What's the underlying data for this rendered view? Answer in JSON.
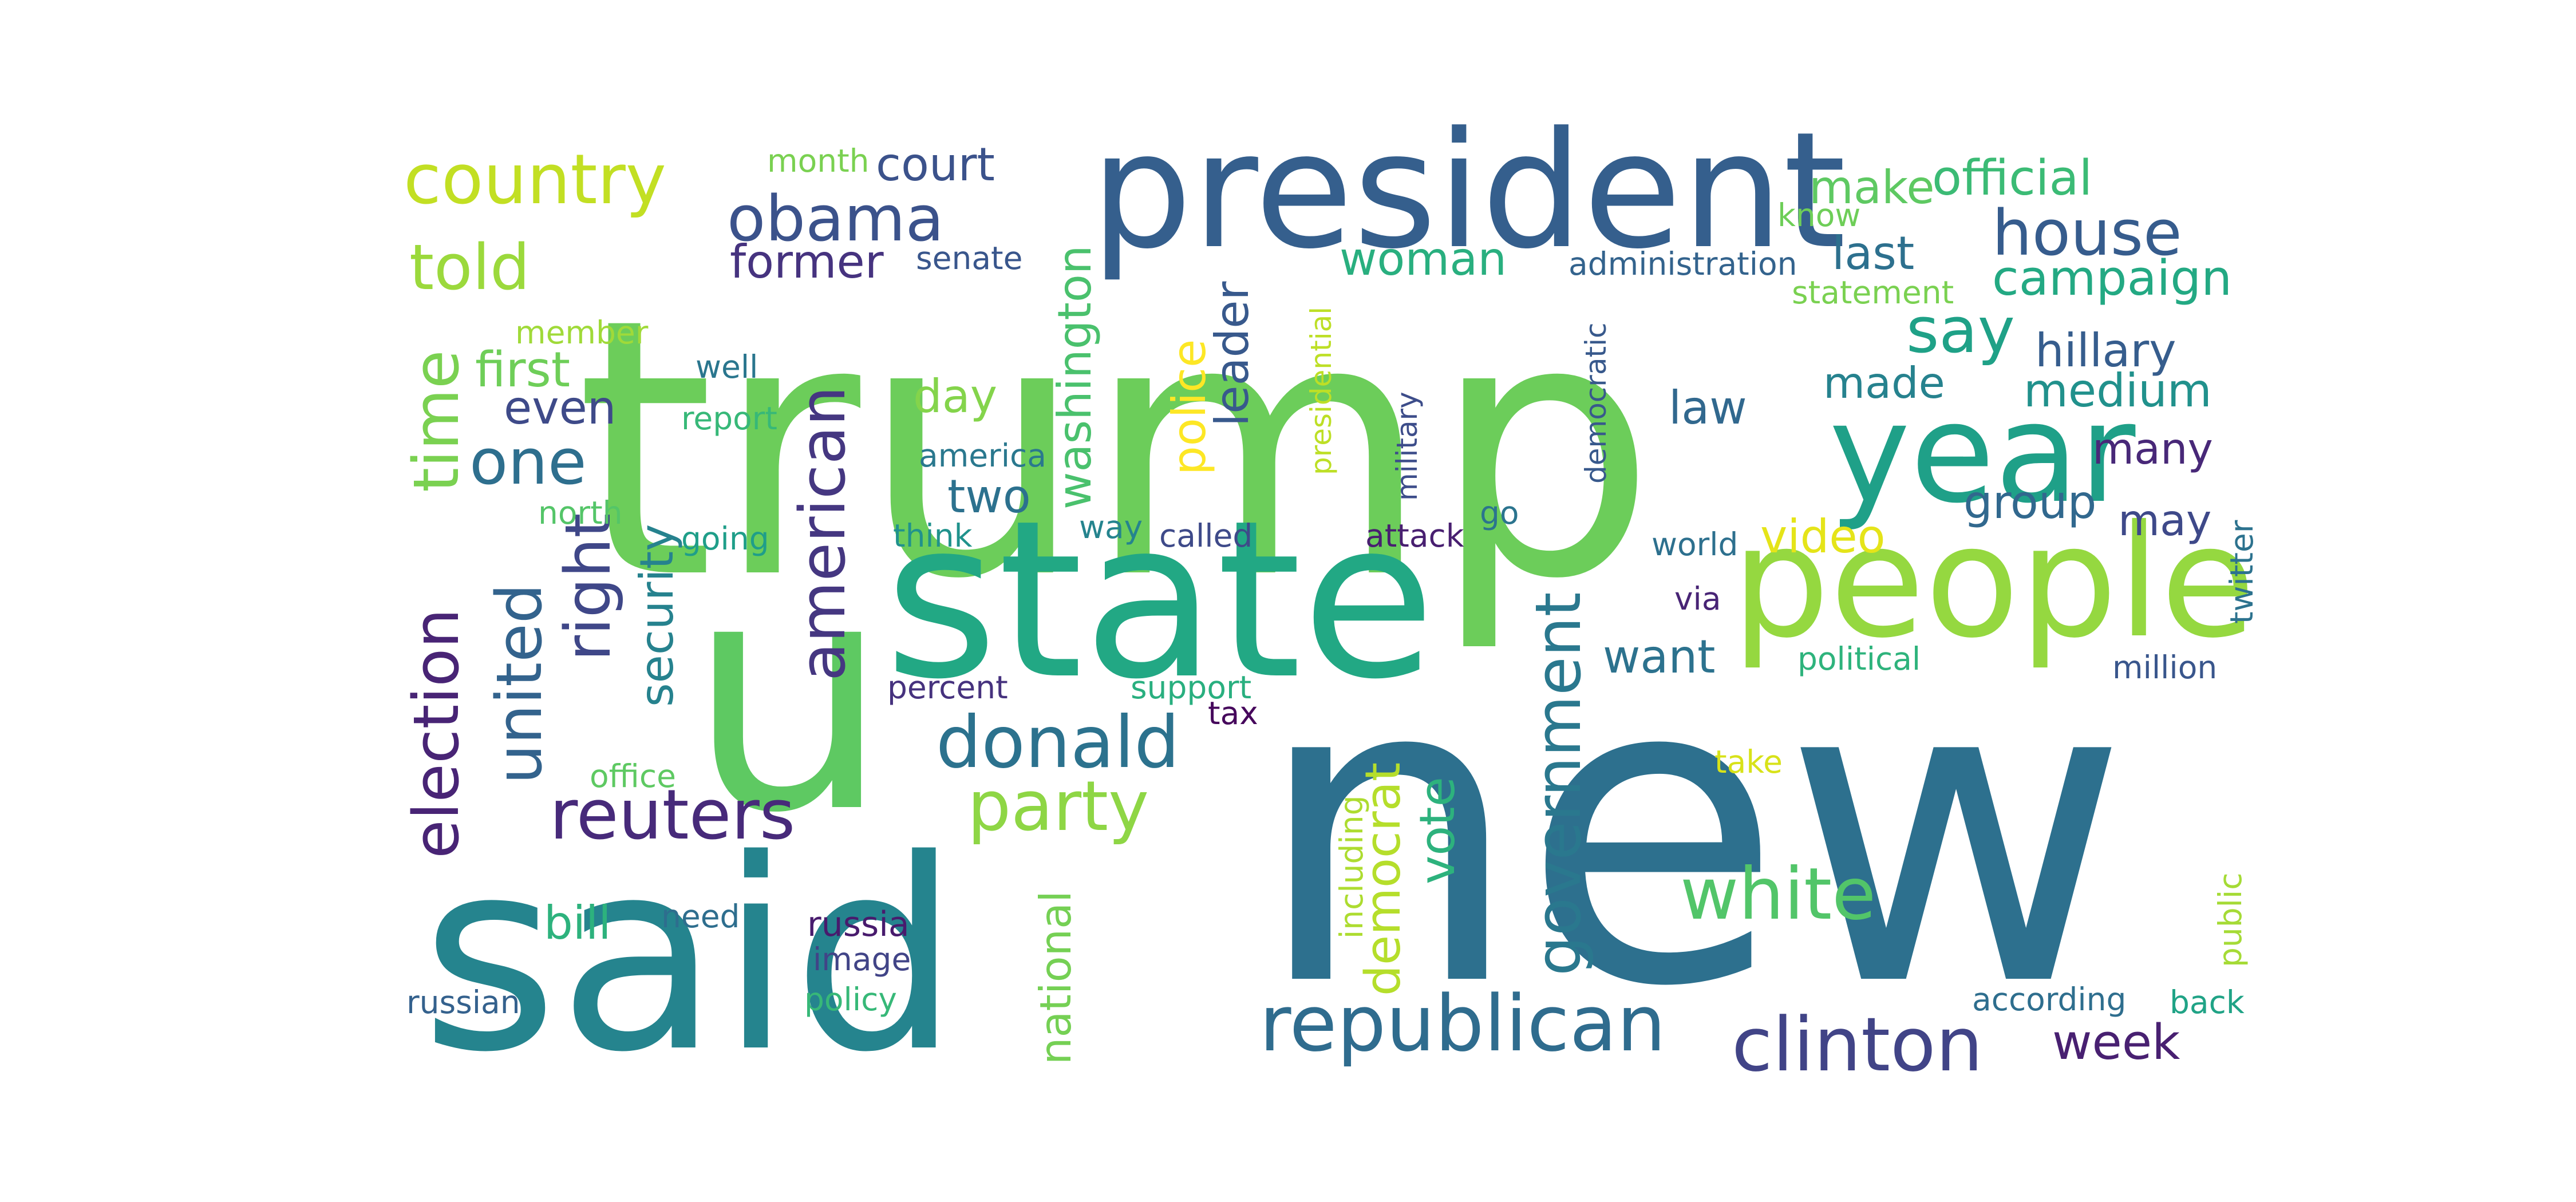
{
  "word_cloud": {
    "words": [
      {
        "text": "new",
        "color": "#2d708e"
      },
      {
        "text": "trump",
        "color": "#6ccd5a"
      },
      {
        "text": "said",
        "color": "#25848e"
      },
      {
        "text": "u",
        "color": "#5ec962"
      },
      {
        "text": "state",
        "color": "#22a884"
      },
      {
        "text": "president",
        "color": "#355f8d"
      },
      {
        "text": "people",
        "color": "#95d840"
      },
      {
        "text": "year",
        "color": "#1fa088"
      },
      {
        "text": "republican",
        "color": "#2f6c8e"
      },
      {
        "text": "clinton",
        "color": "#414487"
      },
      {
        "text": "donald",
        "color": "#2c728e"
      },
      {
        "text": "party",
        "color": "#8ed645"
      },
      {
        "text": "reuters",
        "color": "#472a7a"
      },
      {
        "text": "white",
        "color": "#52c569"
      },
      {
        "text": "government",
        "color": "#2a788e"
      },
      {
        "text": "election",
        "color": "#482475"
      },
      {
        "text": "american",
        "color": "#453781"
      },
      {
        "text": "country",
        "color": "#c2df23"
      },
      {
        "text": "obama",
        "color": "#3b528b"
      },
      {
        "text": "house",
        "color": "#365c8d"
      },
      {
        "text": "time",
        "color": "#7ad151"
      },
      {
        "text": "united",
        "color": "#33638d"
      },
      {
        "text": "told",
        "color": "#9bd93c"
      },
      {
        "text": "one",
        "color": "#2e6f8e"
      },
      {
        "text": "right",
        "color": "#3f4788"
      },
      {
        "text": "washington",
        "color": "#4ac16d"
      },
      {
        "text": "court",
        "color": "#3b528b"
      },
      {
        "text": "official",
        "color": "#3bbb75"
      },
      {
        "text": "campaign",
        "color": "#23a983"
      },
      {
        "text": "say",
        "color": "#1fa187"
      },
      {
        "text": "hillary",
        "color": "#365d8d"
      },
      {
        "text": "medium",
        "color": "#21918c"
      },
      {
        "text": "make",
        "color": "#5ec962"
      },
      {
        "text": "last",
        "color": "#2d708e"
      },
      {
        "text": "woman",
        "color": "#29af7f"
      },
      {
        "text": "former",
        "color": "#46337f"
      },
      {
        "text": "first",
        "color": "#6ece58"
      },
      {
        "text": "even",
        "color": "#3e4a89"
      },
      {
        "text": "law",
        "color": "#31688e"
      },
      {
        "text": "made",
        "color": "#26828e"
      },
      {
        "text": "many",
        "color": "#482878"
      },
      {
        "text": "group",
        "color": "#31688e"
      },
      {
        "text": "may",
        "color": "#3e4989"
      },
      {
        "text": "video",
        "color": "#e5e419"
      },
      {
        "text": "want",
        "color": "#2c728e"
      },
      {
        "text": "vote",
        "color": "#2db27d"
      },
      {
        "text": "democrat",
        "color": "#b5de2b"
      },
      {
        "text": "security",
        "color": "#26828e"
      },
      {
        "text": "police",
        "color": "#fde725"
      },
      {
        "text": "leader",
        "color": "#38598c"
      },
      {
        "text": "day",
        "color": "#84d44b"
      },
      {
        "text": "two",
        "color": "#2c718e"
      },
      {
        "text": "national",
        "color": "#75d054"
      },
      {
        "text": "bill",
        "color": "#2db27d"
      },
      {
        "text": "month",
        "color": "#7ad151"
      },
      {
        "text": "senate",
        "color": "#39568c"
      },
      {
        "text": "administration",
        "color": "#33638d"
      },
      {
        "text": "statement",
        "color": "#7ad151"
      },
      {
        "text": "know",
        "color": "#6ece58"
      },
      {
        "text": "member",
        "color": "#a0da39"
      },
      {
        "text": "well",
        "color": "#2a768e"
      },
      {
        "text": "report",
        "color": "#37b878"
      },
      {
        "text": "america",
        "color": "#2a788e"
      },
      {
        "text": "presidential",
        "color": "#bddf26"
      },
      {
        "text": "military",
        "color": "#3d4d8a"
      },
      {
        "text": "democratic",
        "color": "#38598c"
      },
      {
        "text": "north",
        "color": "#54c568"
      },
      {
        "text": "going",
        "color": "#1f9e89"
      },
      {
        "text": "think",
        "color": "#20928c"
      },
      {
        "text": "way",
        "color": "#25848e"
      },
      {
        "text": "called",
        "color": "#3e4a89"
      },
      {
        "text": "attack",
        "color": "#481f70"
      },
      {
        "text": "go",
        "color": "#2b748e"
      },
      {
        "text": "world",
        "color": "#2d708e"
      },
      {
        "text": "via",
        "color": "#482475"
      },
      {
        "text": "twitter",
        "color": "#2c728e"
      },
      {
        "text": "political",
        "color": "#2eb37c"
      },
      {
        "text": "million",
        "color": "#39568c"
      },
      {
        "text": "percent",
        "color": "#46327e"
      },
      {
        "text": "support",
        "color": "#29af7f"
      },
      {
        "text": "tax",
        "color": "#46085c"
      },
      {
        "text": "office",
        "color": "#5ec962"
      },
      {
        "text": "take",
        "color": "#d8e219"
      },
      {
        "text": "including",
        "color": "#addc30"
      },
      {
        "text": "need",
        "color": "#2e6e8e"
      },
      {
        "text": "russia",
        "color": "#481b6d"
      },
      {
        "text": "image",
        "color": "#414487"
      },
      {
        "text": "policy",
        "color": "#37b878"
      },
      {
        "text": "russian",
        "color": "#34618d"
      },
      {
        "text": "public",
        "color": "#a5db36"
      },
      {
        "text": "according",
        "color": "#2e6e8e"
      },
      {
        "text": "back",
        "color": "#20a386"
      },
      {
        "text": "week",
        "color": "#482071"
      }
    ]
  }
}
